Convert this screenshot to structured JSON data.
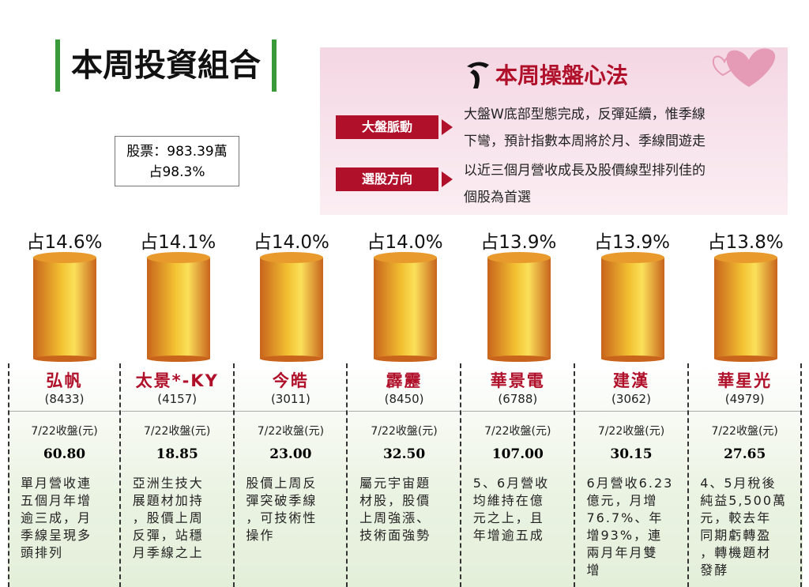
{
  "header": {
    "title": "本周投資組合"
  },
  "holdings": {
    "lines": [
      "股票：983.39萬",
      "占98.3%"
    ]
  },
  "strategy": {
    "title": "本周操盤心法",
    "labels": [
      "大盤脈動",
      "選股方向"
    ],
    "lines": [
      "大盤W底部型態完成，反彈延續，惟季線",
      "下彎，預計指數本周將於月、季線間遊走",
      "以近三個月營收成長及股價線型排列佳的",
      "個股為首選"
    ]
  },
  "stocks": [
    {
      "weight": "占14.6%",
      "name": "弘帆",
      "code": "(8433)",
      "close_label": "7/22收盤(元)",
      "close": "60.80",
      "note": [
        "單月營收連",
        "五個月年增",
        "逾三成，月",
        "季線呈現多",
        "頭排列"
      ]
    },
    {
      "weight": "占14.1%",
      "name": "太景*-KY",
      "code": "(4157)",
      "close_label": "7/22收盤(元)",
      "close": "18.85",
      "note": [
        "亞洲生技大",
        "展題材加持",
        "，股價上周",
        "反彈，站穩",
        "月季線之上"
      ]
    },
    {
      "weight": "占14.0%",
      "name": "今皓",
      "code": "(3011)",
      "close_label": "7/22收盤(元)",
      "close": "23.00",
      "note": [
        "股價上周反",
        "彈突破季線",
        "，可技術性",
        "操作"
      ]
    },
    {
      "weight": "占14.0%",
      "name": "霹靂",
      "code": "(8450)",
      "close_label": "7/22收盤(元)",
      "close": "32.50",
      "note": [
        "屬元宇宙題",
        "材股，股價",
        "上周強漲、",
        "技術面強勢"
      ]
    },
    {
      "weight": "占13.9%",
      "name": "華景電",
      "code": "(6788)",
      "close_label": "7/22收盤(元)",
      "close": "107.00",
      "note": [
        "5、6月營收",
        "均維持在億",
        "元之上，且",
        "年增逾五成"
      ]
    },
    {
      "weight": "占13.9%",
      "name": "建漢",
      "code": "(3062)",
      "close_label": "7/22收盤(元)",
      "close": "30.15",
      "note": [
        "6月營收6.23",
        "億元，月增",
        "76.7%、年",
        "增93%，連",
        "兩月年月雙",
        "增"
      ]
    },
    {
      "weight": "占13.8%",
      "name": "華星光",
      "code": "(4979)",
      "close_label": "7/22收盤(元)",
      "close": "27.65",
      "note": [
        "4、5月稅後",
        "純益5,500萬",
        "元，較去年",
        "同期虧轉盈",
        "，轉機題材",
        "發酵"
      ]
    }
  ]
}
